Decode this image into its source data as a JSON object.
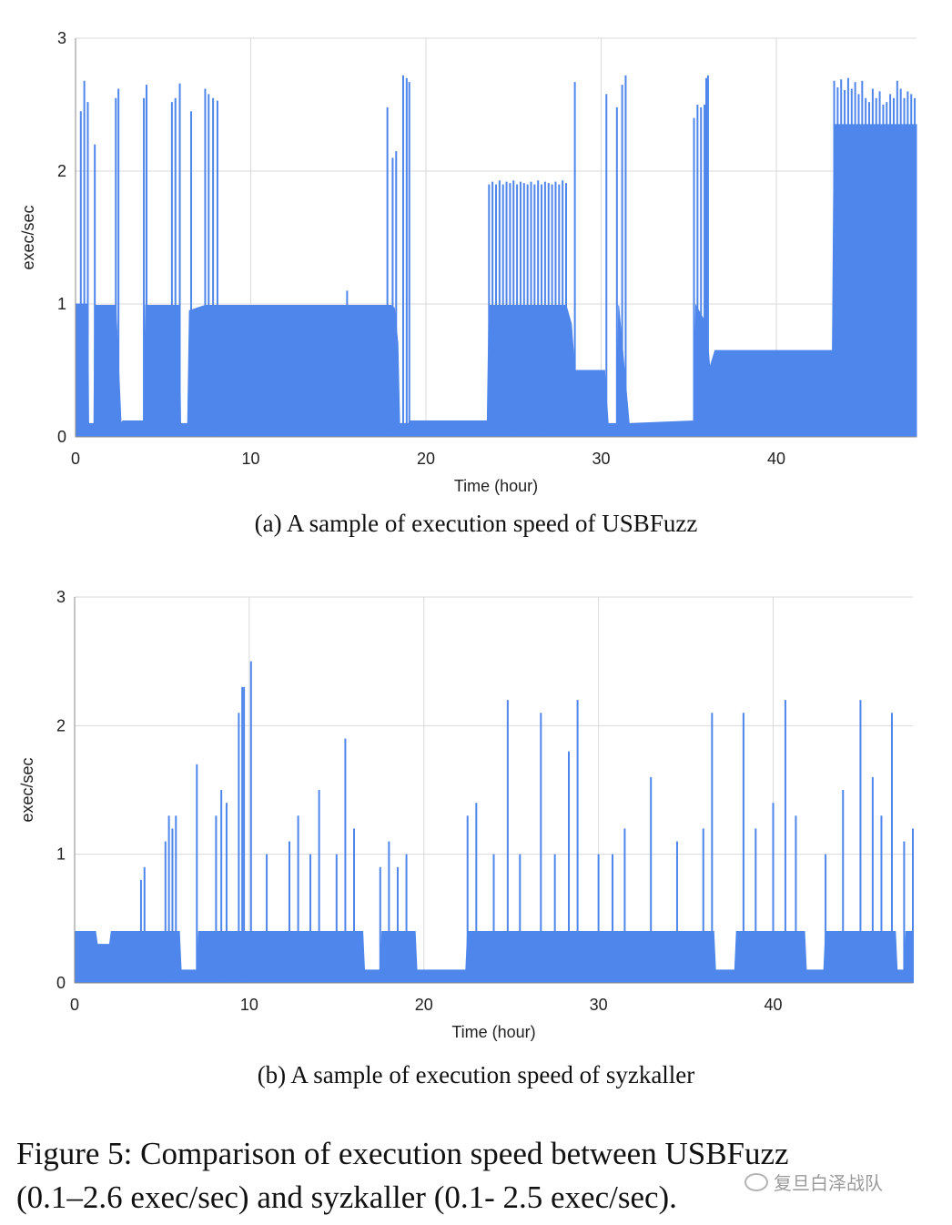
{
  "chart_data": [
    {
      "type": "area",
      "xlabel": "Time (hour)",
      "ylabel": "exec/sec",
      "xlim": [
        0,
        48
      ],
      "ylim": [
        0,
        3
      ],
      "xticks": [
        "0",
        "10",
        "20",
        "30",
        "40"
      ],
      "yticks": [
        "0",
        "1",
        "2",
        "3"
      ],
      "grid": true,
      "color": "#4f86ec",
      "baseline": [
        [
          0,
          1.0
        ],
        [
          0.7,
          1.0
        ],
        [
          0.75,
          0.1
        ],
        [
          1.05,
          0.1
        ],
        [
          1.1,
          0.99
        ],
        [
          2.3,
          0.99
        ],
        [
          2.6,
          0.1
        ],
        [
          2.7,
          0.12
        ],
        [
          3.9,
          0.12
        ],
        [
          4.0,
          0.99
        ],
        [
          5.9,
          0.99
        ],
        [
          6.0,
          0.1
        ],
        [
          6.4,
          0.1
        ],
        [
          6.5,
          0.95
        ],
        [
          7.4,
          0.99
        ],
        [
          18.0,
          0.99
        ],
        [
          18.2,
          0.97
        ],
        [
          18.4,
          0.7
        ],
        [
          18.5,
          0.1
        ],
        [
          19.0,
          0.1
        ],
        [
          19.1,
          0.12
        ],
        [
          23.5,
          0.12
        ],
        [
          23.6,
          0.99
        ],
        [
          28.0,
          0.99
        ],
        [
          28.3,
          0.85
        ],
        [
          28.5,
          0.5
        ],
        [
          30.2,
          0.5
        ],
        [
          30.4,
          0.1
        ],
        [
          30.9,
          0.1
        ],
        [
          31.0,
          0.99
        ],
        [
          31.6,
          0.1
        ],
        [
          35.3,
          0.12
        ],
        [
          35.4,
          0.99
        ],
        [
          36.0,
          0.85
        ],
        [
          36.2,
          0.52
        ],
        [
          36.5,
          0.65
        ],
        [
          43.2,
          0.65
        ],
        [
          43.3,
          2.35
        ],
        [
          48,
          2.35
        ]
      ],
      "spikes": [
        [
          0.3,
          2.45
        ],
        [
          0.5,
          2.68
        ],
        [
          0.7,
          2.52
        ],
        [
          1.1,
          2.2
        ],
        [
          2.3,
          2.55
        ],
        [
          2.45,
          2.62
        ],
        [
          3.9,
          2.55
        ],
        [
          4.05,
          2.65
        ],
        [
          5.5,
          2.52
        ],
        [
          5.7,
          2.55
        ],
        [
          5.95,
          2.66
        ],
        [
          6.6,
          2.45
        ],
        [
          7.4,
          2.62
        ],
        [
          7.6,
          2.58
        ],
        [
          7.85,
          2.55
        ],
        [
          8.1,
          2.53
        ],
        [
          15.5,
          1.1
        ],
        [
          17.8,
          2.48
        ],
        [
          18.1,
          2.1
        ],
        [
          18.3,
          2.15
        ],
        [
          18.7,
          2.72
        ],
        [
          18.9,
          2.7
        ],
        [
          19.05,
          2.67
        ],
        [
          23.6,
          1.9
        ],
        [
          23.8,
          1.92
        ],
        [
          24.0,
          1.9
        ],
        [
          24.2,
          1.93
        ],
        [
          24.4,
          1.9
        ],
        [
          24.6,
          1.92
        ],
        [
          24.8,
          1.91
        ],
        [
          25.0,
          1.93
        ],
        [
          25.2,
          1.9
        ],
        [
          25.4,
          1.92
        ],
        [
          25.6,
          1.91
        ],
        [
          25.8,
          1.9
        ],
        [
          26.0,
          1.92
        ],
        [
          26.2,
          1.9
        ],
        [
          26.4,
          1.93
        ],
        [
          26.6,
          1.9
        ],
        [
          26.8,
          1.92
        ],
        [
          27.0,
          1.91
        ],
        [
          27.2,
          1.9
        ],
        [
          27.4,
          1.92
        ],
        [
          27.6,
          1.9
        ],
        [
          27.8,
          1.93
        ],
        [
          28.0,
          1.91
        ],
        [
          28.5,
          2.67
        ],
        [
          30.3,
          2.58
        ],
        [
          30.9,
          2.48
        ],
        [
          31.2,
          2.65
        ],
        [
          31.4,
          2.72
        ],
        [
          35.3,
          2.4
        ],
        [
          35.5,
          2.5
        ],
        [
          35.7,
          2.48
        ],
        [
          35.9,
          2.5
        ],
        [
          36.0,
          2.7
        ],
        [
          36.1,
          2.72
        ],
        [
          43.3,
          2.68
        ],
        [
          43.5,
          2.63
        ],
        [
          43.7,
          2.69
        ],
        [
          43.9,
          2.61
        ],
        [
          44.1,
          2.7
        ],
        [
          44.3,
          2.62
        ],
        [
          44.5,
          2.67
        ],
        [
          44.7,
          2.58
        ],
        [
          44.9,
          2.68
        ],
        [
          45.1,
          2.55
        ],
        [
          45.3,
          2.52
        ],
        [
          45.5,
          2.62
        ],
        [
          45.7,
          2.55
        ],
        [
          45.9,
          2.6
        ],
        [
          46.1,
          2.5
        ],
        [
          46.3,
          2.52
        ],
        [
          46.5,
          2.58
        ],
        [
          46.7,
          2.55
        ],
        [
          46.9,
          2.68
        ],
        [
          47.1,
          2.62
        ],
        [
          47.3,
          2.55
        ],
        [
          47.5,
          2.6
        ],
        [
          47.7,
          2.58
        ],
        [
          47.9,
          2.55
        ]
      ]
    },
    {
      "type": "area",
      "xlabel": "Time (hour)",
      "ylabel": "exec/sec",
      "xlim": [
        0,
        48
      ],
      "ylim": [
        0,
        3
      ],
      "xticks": [
        "0",
        "10",
        "20",
        "30",
        "40"
      ],
      "yticks": [
        "0",
        "1",
        "2",
        "3"
      ],
      "grid": true,
      "color": "#4f86ec",
      "baseline": [
        [
          0,
          0.4
        ],
        [
          1.2,
          0.4
        ],
        [
          1.3,
          0.3
        ],
        [
          2.0,
          0.3
        ],
        [
          2.1,
          0.4
        ],
        [
          6.0,
          0.4
        ],
        [
          6.1,
          0.1
        ],
        [
          7.0,
          0.1
        ],
        [
          7.1,
          0.4
        ],
        [
          16.5,
          0.4
        ],
        [
          16.6,
          0.1
        ],
        [
          17.5,
          0.1
        ],
        [
          17.6,
          0.4
        ],
        [
          19.5,
          0.4
        ],
        [
          19.6,
          0.1
        ],
        [
          22.4,
          0.1
        ],
        [
          22.5,
          0.4
        ],
        [
          36.6,
          0.4
        ],
        [
          36.7,
          0.1
        ],
        [
          37.8,
          0.1
        ],
        [
          37.9,
          0.4
        ],
        [
          41.8,
          0.4
        ],
        [
          41.9,
          0.1
        ],
        [
          42.9,
          0.1
        ],
        [
          43.0,
          0.4
        ],
        [
          47.0,
          0.4
        ],
        [
          47.1,
          0.1
        ],
        [
          47.5,
          0.1
        ],
        [
          47.6,
          0.4
        ],
        [
          48,
          0.4
        ]
      ],
      "spikes": [
        [
          3.8,
          0.8
        ],
        [
          4.0,
          0.9
        ],
        [
          5.2,
          1.1
        ],
        [
          5.4,
          1.3
        ],
        [
          5.6,
          1.2
        ],
        [
          5.8,
          1.3
        ],
        [
          7.0,
          1.7
        ],
        [
          8.1,
          1.3
        ],
        [
          8.4,
          1.5
        ],
        [
          8.7,
          1.4
        ],
        [
          9.4,
          2.1
        ],
        [
          9.6,
          2.3
        ],
        [
          9.7,
          2.3
        ],
        [
          10.1,
          2.5
        ],
        [
          11.0,
          1.0
        ],
        [
          12.3,
          1.1
        ],
        [
          12.8,
          1.3
        ],
        [
          13.5,
          1.0
        ],
        [
          14.0,
          1.5
        ],
        [
          15.0,
          1.0
        ],
        [
          15.5,
          1.9
        ],
        [
          16.0,
          1.2
        ],
        [
          17.5,
          0.9
        ],
        [
          18.0,
          1.1
        ],
        [
          18.5,
          0.9
        ],
        [
          19.0,
          1.0
        ],
        [
          22.5,
          1.3
        ],
        [
          23.0,
          1.4
        ],
        [
          24.0,
          1.0
        ],
        [
          24.8,
          2.2
        ],
        [
          25.5,
          1.0
        ],
        [
          26.7,
          2.1
        ],
        [
          27.5,
          1.0
        ],
        [
          28.3,
          1.8
        ],
        [
          28.8,
          2.2
        ],
        [
          30.0,
          1.0
        ],
        [
          30.8,
          1.0
        ],
        [
          31.5,
          1.2
        ],
        [
          33.0,
          1.6
        ],
        [
          34.5,
          1.1
        ],
        [
          36.0,
          1.2
        ],
        [
          36.5,
          2.1
        ],
        [
          38.3,
          2.1
        ],
        [
          39.0,
          1.2
        ],
        [
          40.0,
          1.4
        ],
        [
          40.7,
          2.2
        ],
        [
          41.3,
          1.3
        ],
        [
          43.0,
          1.0
        ],
        [
          44.0,
          1.5
        ],
        [
          45.0,
          2.2
        ],
        [
          45.7,
          1.6
        ],
        [
          46.2,
          1.3
        ],
        [
          46.8,
          2.1
        ],
        [
          47.5,
          1.1
        ],
        [
          48.0,
          1.2
        ]
      ]
    }
  ],
  "captions": {
    "a": "(a) A sample of execution speed of USBFuzz",
    "b": "(b) A sample of execution speed of syzkaller"
  },
  "figure_caption_line1": "Figure 5: Comparison of execution speed between USBFuzz",
  "figure_caption_line2": "(0.1–2.6 exec/sec) and syzkaller (0.1- 2.5 exec/sec).",
  "watermark": "复旦白泽战队"
}
